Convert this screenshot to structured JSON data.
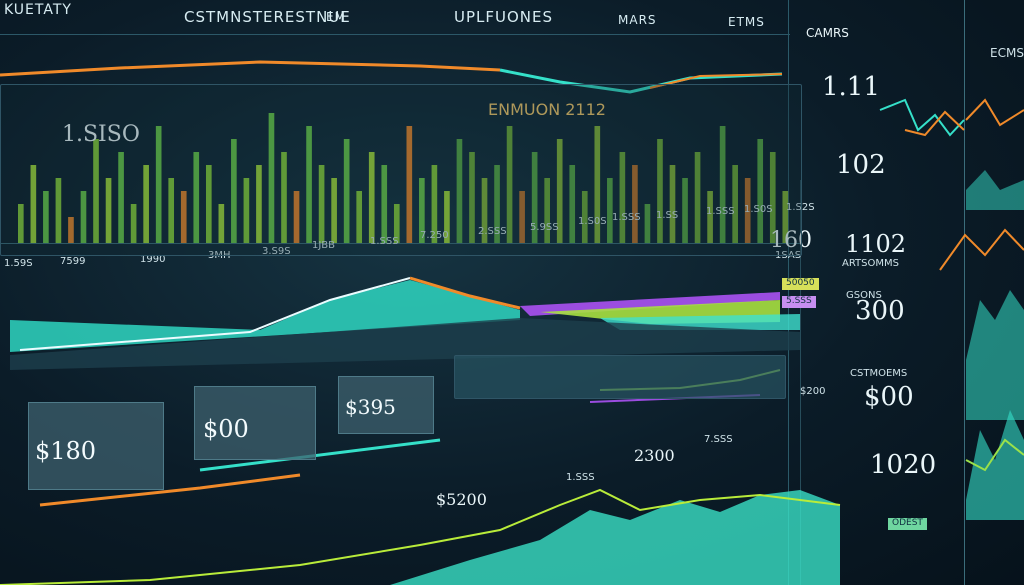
{
  "header": {
    "left_title": "KUETATY",
    "center_title": "CSTMNSTERESTNUE",
    "badge": "EM",
    "right_title": "UPLFUONES",
    "small_title": "MARS",
    "far_title": "ETMS"
  },
  "main_chart": {
    "value_label": "1.SISO",
    "highlight": "ENMUON 2112",
    "tick_labels": [
      "1.59S",
      "7599",
      "1990",
      "3MH",
      "3.S9S",
      "1JBB",
      "1.SSS",
      "7.250",
      "2.SSS",
      "5.9SS",
      "1.S0S",
      "1.SSS",
      "1.SS",
      "1.SSS",
      "1.S0S",
      "1.S2S"
    ],
    "bar_values": [
      3,
      6,
      4,
      5,
      2,
      4,
      8,
      5,
      7,
      3,
      6,
      9,
      5,
      4,
      7,
      6,
      3,
      8,
      5,
      6,
      10,
      7,
      4,
      9,
      6,
      5,
      8,
      4,
      7,
      6,
      3,
      9,
      5,
      6,
      4,
      8,
      7,
      5,
      6,
      9,
      4,
      7,
      5,
      8,
      6,
      4,
      9,
      5,
      7,
      6,
      3,
      8,
      6,
      5,
      7,
      4,
      9,
      6,
      5,
      8,
      7,
      4
    ]
  },
  "mid_panel": {
    "value": "160",
    "sub": "1SAS",
    "chip_1": "50050",
    "chip_2": "5.SSS"
  },
  "value_boxes": [
    {
      "label": "$180"
    },
    {
      "label": "$00"
    },
    {
      "label": "$395"
    }
  ],
  "bottom_labels": {
    "center_value": "2300",
    "left_value": "$5200",
    "small_1": "1.SSS",
    "small_2": "$200",
    "small_3": "7.SSS"
  },
  "right_panel": {
    "title": "CAMRS",
    "metric_1": "1.11",
    "metric_2": "102",
    "metric_3": "1102",
    "metric_4": "300",
    "metric_5": "$00",
    "metric_6": "1020",
    "sub_1": "ARTSOMMS",
    "sub_2": "GSONS",
    "sub_3": "CSTMOEMS",
    "chip": "ODEST",
    "tag": "ECMS"
  },
  "colors": {
    "accent_teal": "#35e0c9",
    "accent_orange": "#f08a2a",
    "accent_green": "#8ad33a",
    "accent_purple": "#9b4de0",
    "grid": "#2b5a69"
  }
}
